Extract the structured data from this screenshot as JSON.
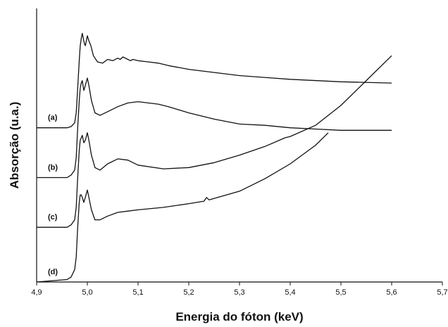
{
  "chart_data": {
    "type": "line",
    "title": "",
    "xlabel": "Energia do fóton (keV)",
    "ylabel": "Absorção (u.a.)",
    "xlim": [
      4.9,
      5.7
    ],
    "ylim": [
      0,
      11
    ],
    "x_tick_values": [
      4.9,
      5.0,
      5.1,
      5.2,
      5.3,
      5.4,
      5.5,
      5.6,
      5.7
    ],
    "x_tick_labels": [
      "4,9",
      "5,0",
      "5,1",
      "5,2",
      "5,3",
      "5,4",
      "5,5",
      "5,6",
      "5,7"
    ],
    "y_ticks_shown": false,
    "grid": false,
    "legend": "none",
    "series": [
      {
        "label": "(a)",
        "x": [
          4.9,
          4.96,
          4.968,
          4.975,
          4.978,
          4.981,
          4.984,
          4.986,
          4.988,
          4.99,
          4.992,
          4.994,
          4.996,
          4.998,
          5.0,
          5.003,
          5.007,
          5.012,
          5.02,
          5.03,
          5.04,
          5.05,
          5.06,
          5.065,
          5.07,
          5.08,
          5.085,
          5.09,
          5.1,
          5.12,
          5.14,
          5.16,
          5.2,
          5.3,
          5.4,
          5.5,
          5.6
        ],
        "y": [
          6.2,
          6.2,
          6.25,
          6.4,
          6.8,
          7.8,
          8.9,
          9.5,
          9.8,
          10.0,
          9.8,
          9.6,
          9.5,
          9.7,
          9.9,
          9.7,
          9.5,
          9.1,
          8.85,
          8.8,
          8.95,
          8.9,
          9.0,
          8.95,
          9.05,
          8.95,
          8.9,
          8.95,
          8.9,
          8.85,
          8.8,
          8.7,
          8.55,
          8.3,
          8.15,
          8.05,
          8.0
        ]
      },
      {
        "label": "(b)",
        "x": [
          4.9,
          4.96,
          4.968,
          4.975,
          4.978,
          4.981,
          4.984,
          4.986,
          4.988,
          4.99,
          4.993,
          4.996,
          5.0,
          5.003,
          5.008,
          5.015,
          5.025,
          5.04,
          5.06,
          5.08,
          5.1,
          5.12,
          5.14,
          5.16,
          5.2,
          5.25,
          5.3,
          5.35,
          5.4,
          5.45,
          5.5,
          5.55,
          5.6
        ],
        "y": [
          4.2,
          4.2,
          4.3,
          4.5,
          5.0,
          6.2,
          7.3,
          7.8,
          8.0,
          8.1,
          7.7,
          7.9,
          8.2,
          7.9,
          7.3,
          6.8,
          6.7,
          6.85,
          7.05,
          7.2,
          7.25,
          7.2,
          7.15,
          7.05,
          6.8,
          6.55,
          6.35,
          6.3,
          6.2,
          6.15,
          6.1,
          6.1,
          6.1
        ]
      },
      {
        "label": "(c)",
        "x": [
          4.9,
          4.96,
          4.968,
          4.975,
          4.978,
          4.981,
          4.984,
          4.986,
          4.988,
          4.99,
          4.993,
          4.996,
          5.0,
          5.003,
          5.008,
          5.015,
          5.025,
          5.04,
          5.06,
          5.08,
          5.1,
          5.15,
          5.2,
          5.25,
          5.3,
          5.35,
          5.39,
          5.4,
          5.45,
          5.5,
          5.55,
          5.6
        ],
        "y": [
          2.2,
          2.2,
          2.3,
          2.5,
          3.0,
          4.2,
          5.3,
          5.7,
          5.8,
          5.9,
          5.6,
          5.7,
          6.0,
          5.7,
          5.1,
          4.6,
          4.5,
          4.75,
          4.95,
          4.9,
          4.7,
          4.55,
          4.6,
          4.8,
          5.1,
          5.45,
          5.8,
          5.85,
          6.3,
          7.1,
          8.1,
          9.1
        ]
      },
      {
        "label": "(d)",
        "x": [
          4.9,
          4.96,
          4.968,
          4.975,
          4.978,
          4.981,
          4.984,
          4.986,
          4.988,
          4.99,
          4.993,
          4.996,
          5.0,
          5.003,
          5.008,
          5.015,
          5.025,
          5.04,
          5.06,
          5.08,
          5.1,
          5.15,
          5.2,
          5.23,
          5.235,
          5.24,
          5.3,
          5.35,
          5.4,
          5.45,
          5.475
        ],
        "y": [
          0.0,
          0.1,
          0.2,
          0.5,
          1.0,
          2.2,
          3.2,
          3.5,
          3.5,
          3.4,
          3.2,
          3.4,
          3.7,
          3.4,
          2.9,
          2.5,
          2.5,
          2.65,
          2.8,
          2.85,
          2.9,
          3.0,
          3.15,
          3.25,
          3.4,
          3.3,
          3.65,
          4.15,
          4.75,
          5.5,
          6.0
        ]
      }
    ]
  }
}
